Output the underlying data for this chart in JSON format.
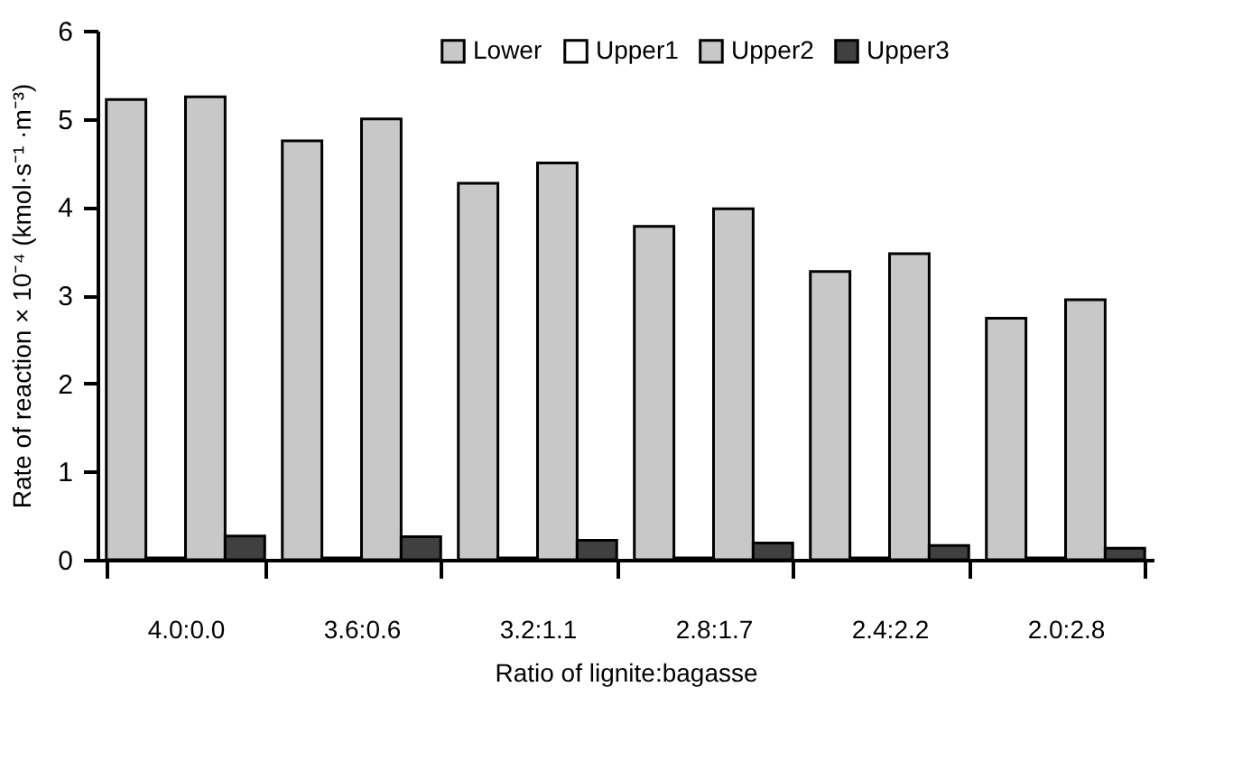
{
  "chart_data": {
    "type": "bar",
    "xlabel": "Ratio of lignite:bagasse",
    "ylabel": "Rate of reaction × 10⁻⁴ (kmol·s⁻¹ ·m⁻³)",
    "categories": [
      "4.0:0.0",
      "3.6:0.6",
      "3.2:1.1",
      "2.8:1.7",
      "2.4:2.2",
      "2.0:2.8"
    ],
    "series": [
      {
        "name": "Lower",
        "color": "#c8c8c8",
        "values": [
          5.22,
          4.75,
          4.27,
          3.78,
          3.27,
          2.74
        ]
      },
      {
        "name": "Upper1",
        "color": "#ffffff",
        "values": [
          0.02,
          0.02,
          0.02,
          0.02,
          0.02,
          0.02
        ]
      },
      {
        "name": "Upper2",
        "color": "#c8c8c8",
        "values": [
          5.25,
          5.0,
          4.5,
          3.98,
          3.47,
          2.95
        ]
      },
      {
        "name": "Upper3",
        "color": "#404040",
        "values": [
          0.27,
          0.26,
          0.22,
          0.19,
          0.16,
          0.13
        ]
      }
    ],
    "ylim": [
      0,
      6
    ],
    "yticks": [
      0,
      1,
      2,
      3,
      4,
      5,
      6
    ],
    "legend": "top"
  }
}
